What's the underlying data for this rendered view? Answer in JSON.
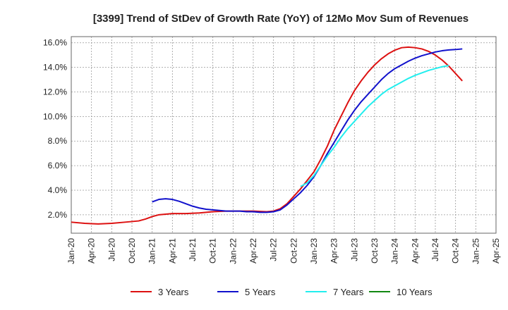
{
  "chart_data": {
    "type": "line",
    "title": "[3399]  Trend of StDev of Growth Rate (YoY) of 12Mo Mov Sum of Revenues",
    "xlabel": "",
    "ylabel": "",
    "ylim": [
      0.5,
      16.5
    ],
    "y_ticks": [
      2,
      4,
      6,
      8,
      10,
      12,
      14,
      16
    ],
    "y_tick_labels": [
      "2.0%",
      "4.0%",
      "6.0%",
      "8.0%",
      "10.0%",
      "12.0%",
      "14.0%",
      "16.0%"
    ],
    "x_tick_labels": [
      "Jan-20",
      "Apr-20",
      "Jul-20",
      "Oct-20",
      "Jan-21",
      "Apr-21",
      "Jul-21",
      "Oct-21",
      "Jan-22",
      "Apr-22",
      "Jul-22",
      "Oct-22",
      "Jan-23",
      "Apr-23",
      "Jul-23",
      "Oct-23",
      "Jan-24",
      "Apr-24",
      "Jul-24",
      "Oct-24",
      "Jan-25",
      "Apr-25"
    ],
    "legend_position": "bottom",
    "grid": true,
    "series": [
      {
        "name": "3 Years",
        "color": "#dd1111",
        "points": [
          [
            0,
            1.4
          ],
          [
            2,
            1.3
          ],
          [
            4,
            1.25
          ],
          [
            6,
            1.3
          ],
          [
            8,
            1.4
          ],
          [
            10,
            1.5
          ],
          [
            11,
            1.65
          ],
          [
            12,
            1.85
          ],
          [
            13,
            2.0
          ],
          [
            15,
            2.1
          ],
          [
            17,
            2.1
          ],
          [
            19,
            2.15
          ],
          [
            21,
            2.25
          ],
          [
            23,
            2.3
          ],
          [
            25,
            2.3
          ],
          [
            27,
            2.3
          ],
          [
            29,
            2.25
          ],
          [
            30,
            2.3
          ],
          [
            31,
            2.5
          ],
          [
            32,
            2.9
          ],
          [
            33,
            3.5
          ],
          [
            34,
            4.1
          ],
          [
            35,
            4.8
          ],
          [
            36,
            5.5
          ],
          [
            37,
            6.5
          ],
          [
            38,
            7.6
          ],
          [
            39,
            8.9
          ],
          [
            40,
            10.0
          ],
          [
            41,
            11.1
          ],
          [
            42,
            12.1
          ],
          [
            43,
            12.9
          ],
          [
            44,
            13.6
          ],
          [
            45,
            14.2
          ],
          [
            46,
            14.7
          ],
          [
            47,
            15.1
          ],
          [
            48,
            15.4
          ],
          [
            49,
            15.6
          ],
          [
            50,
            15.65
          ],
          [
            51,
            15.6
          ],
          [
            52,
            15.5
          ],
          [
            53,
            15.3
          ],
          [
            54,
            15.0
          ],
          [
            55,
            14.6
          ],
          [
            56,
            14.1
          ],
          [
            57,
            13.5
          ],
          [
            58,
            12.9
          ]
        ]
      },
      {
        "name": "5 Years",
        "color": "#1111cc",
        "points": [
          [
            12,
            3.05
          ],
          [
            13,
            3.25
          ],
          [
            14,
            3.3
          ],
          [
            15,
            3.25
          ],
          [
            16,
            3.1
          ],
          [
            17,
            2.9
          ],
          [
            18,
            2.7
          ],
          [
            19,
            2.55
          ],
          [
            20,
            2.45
          ],
          [
            21,
            2.4
          ],
          [
            22,
            2.35
          ],
          [
            23,
            2.3
          ],
          [
            24,
            2.3
          ],
          [
            25,
            2.3
          ],
          [
            26,
            2.25
          ],
          [
            27,
            2.25
          ],
          [
            28,
            2.2
          ],
          [
            29,
            2.2
          ],
          [
            30,
            2.25
          ],
          [
            31,
            2.4
          ],
          [
            32,
            2.8
          ],
          [
            33,
            3.3
          ],
          [
            34,
            3.8
          ],
          [
            35,
            4.4
          ],
          [
            36,
            5.1
          ],
          [
            37,
            6.0
          ],
          [
            38,
            7.0
          ],
          [
            39,
            7.9
          ],
          [
            40,
            8.8
          ],
          [
            41,
            9.7
          ],
          [
            42,
            10.5
          ],
          [
            43,
            11.2
          ],
          [
            44,
            11.8
          ],
          [
            45,
            12.4
          ],
          [
            46,
            13.0
          ],
          [
            47,
            13.5
          ],
          [
            48,
            13.9
          ],
          [
            49,
            14.2
          ],
          [
            50,
            14.5
          ],
          [
            51,
            14.75
          ],
          [
            52,
            14.95
          ],
          [
            53,
            15.1
          ],
          [
            54,
            15.25
          ],
          [
            55,
            15.35
          ],
          [
            56,
            15.42
          ],
          [
            57,
            15.45
          ],
          [
            58,
            15.5
          ]
        ]
      },
      {
        "name": "7 Years",
        "color": "#22eeee",
        "points": [
          [
            34,
            4.3
          ],
          [
            35,
            4.6
          ],
          [
            36,
            5.2
          ],
          [
            37,
            6.0
          ],
          [
            38,
            6.8
          ],
          [
            39,
            7.5
          ],
          [
            40,
            8.3
          ],
          [
            41,
            9.0
          ],
          [
            42,
            9.6
          ],
          [
            43,
            10.2
          ],
          [
            44,
            10.8
          ],
          [
            45,
            11.3
          ],
          [
            46,
            11.8
          ],
          [
            47,
            12.2
          ],
          [
            48,
            12.5
          ],
          [
            49,
            12.8
          ],
          [
            50,
            13.1
          ],
          [
            51,
            13.35
          ],
          [
            52,
            13.55
          ],
          [
            53,
            13.75
          ],
          [
            54,
            13.9
          ],
          [
            55,
            14.05
          ],
          [
            56,
            14.15
          ]
        ]
      },
      {
        "name": "10 Years",
        "color": "#118811",
        "points": []
      }
    ]
  }
}
